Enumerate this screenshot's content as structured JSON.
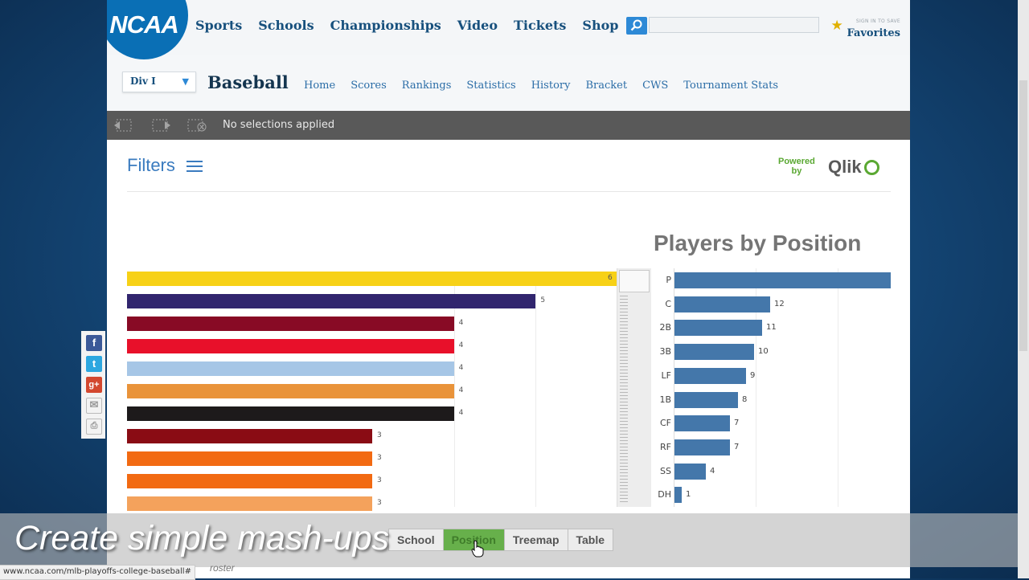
{
  "topnav": {
    "logo_text": "NCAA",
    "links": [
      "Sports",
      "Schools",
      "Championships",
      "Video",
      "Tickets",
      "Shop"
    ],
    "search_placeholder": "",
    "favorites_small": "SIGN IN TO SAVE",
    "favorites_label": "Favorites"
  },
  "subnav": {
    "division": "Div I",
    "sport_title": "Baseball",
    "links": [
      "Home",
      "Scores",
      "Rankings",
      "Statistics",
      "History",
      "Bracket",
      "CWS",
      "Tournament Stats"
    ]
  },
  "selection_bar": {
    "text": "No selections applied"
  },
  "filters_label": "Filters",
  "powered_by": {
    "line1": "Powered",
    "line2": "by",
    "brand": "Qlik"
  },
  "left_chart": {
    "bars": [
      {
        "value": 6,
        "label": "6",
        "color": "#f7d117"
      },
      {
        "value": 5,
        "label": "5",
        "color": "#31256e"
      },
      {
        "value": 4,
        "label": "4",
        "color": "#880a25"
      },
      {
        "value": 4,
        "label": "4",
        "color": "#e8102a"
      },
      {
        "value": 4,
        "label": "4",
        "color": "#a6c6e6"
      },
      {
        "value": 4,
        "label": "4",
        "color": "#e9933a"
      },
      {
        "value": 4,
        "label": "4",
        "color": "#1d1a1b"
      },
      {
        "value": 3,
        "label": "3",
        "color": "#8a0c14"
      },
      {
        "value": 3,
        "label": "3",
        "color": "#f26a12"
      },
      {
        "value": 3,
        "label": "3",
        "color": "#f26a12"
      },
      {
        "value": 3,
        "label": "3",
        "color": "#f4a25c"
      }
    ],
    "xlim": [
      0,
      6
    ]
  },
  "chart_data": {
    "type": "bar",
    "title": "Players by Position",
    "categories": [
      "P",
      "C",
      "2B",
      "3B",
      "LF",
      "1B",
      "CF",
      "RF",
      "SS",
      "DH"
    ],
    "values": [
      27,
      12,
      11,
      10,
      9,
      8,
      7,
      7,
      4,
      1
    ],
    "value_labels": [
      "",
      "12",
      "11",
      "10",
      "9",
      "8",
      "7",
      "7",
      "4",
      "1"
    ],
    "color": "#4477aa",
    "orientation": "horizontal",
    "grid": true
  },
  "share_icons": [
    "facebook-icon",
    "twitter-icon",
    "google-plus-icon",
    "email-icon",
    "print-icon"
  ],
  "caption": "Create simple mash-ups",
  "tabs": [
    {
      "label": "School",
      "active": false
    },
    {
      "label": "Position",
      "active": true
    },
    {
      "label": "Treemap",
      "active": false
    },
    {
      "label": "Table",
      "active": false
    }
  ],
  "status_url": "www.ncaa.com/mlb-playoffs-college-baseball#",
  "roster_text": "roster"
}
